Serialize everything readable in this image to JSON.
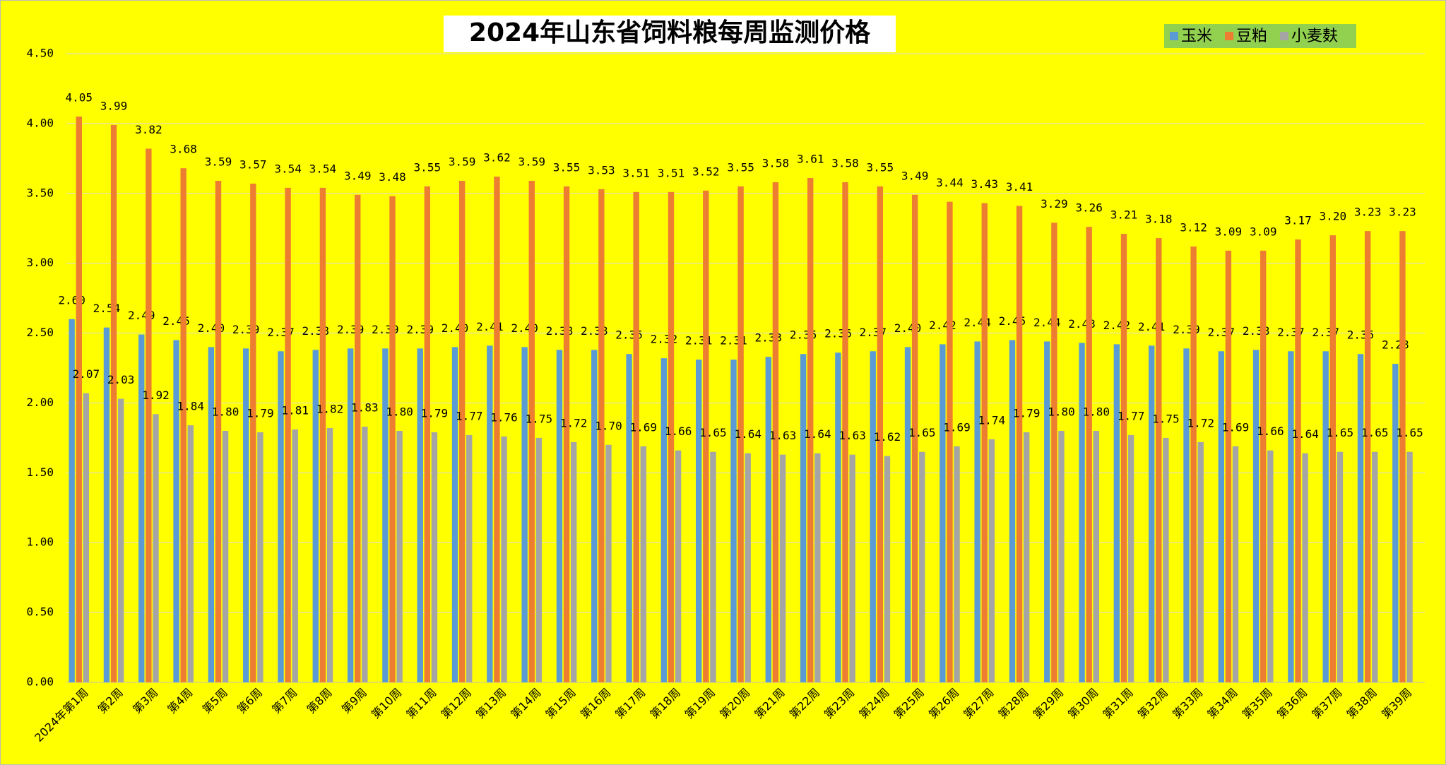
{
  "chart_data": {
    "type": "bar",
    "title": "2024年山东省饲料粮每周监测价格",
    "categories": [
      "2024年第1周",
      "第2周",
      "第3周",
      "第4周",
      "第5周",
      "第6周",
      "第7周",
      "第8周",
      "第9周",
      "第10周",
      "第11周",
      "第12周",
      "第13周",
      "第14周",
      "第15周",
      "第16周",
      "第17周",
      "第18周",
      "第19周",
      "第20周",
      "第21周",
      "第22周",
      "第23周",
      "第24周",
      "第25周",
      "第26周",
      "第27周",
      "第28周",
      "第29周",
      "第30周",
      "第31周",
      "第32周",
      "第33周",
      "第34周",
      "第35周",
      "第36周",
      "第37周",
      "第38周",
      "第39周"
    ],
    "series": [
      {
        "name": "玉米",
        "color": "#5b9bd5",
        "values": [
          2.6,
          2.54,
          2.49,
          2.45,
          2.4,
          2.39,
          2.37,
          2.38,
          2.39,
          2.39,
          2.39,
          2.4,
          2.41,
          2.4,
          2.38,
          2.38,
          2.35,
          2.32,
          2.31,
          2.31,
          2.33,
          2.35,
          2.36,
          2.37,
          2.4,
          2.42,
          2.44,
          2.45,
          2.44,
          2.43,
          2.42,
          2.41,
          2.39,
          2.37,
          2.38,
          2.37,
          2.37,
          2.35,
          2.28
        ],
        "value_labels": [
          "2.60",
          "2.54",
          "2.49",
          "2.45",
          "2.40",
          "2.39",
          "2.37",
          "2.38",
          "2.39",
          "2.39",
          "2.39",
          "2.40",
          "2.41",
          "2.40",
          "2.38",
          "2.38",
          "2.35",
          "2.32",
          "2.31",
          "2.31",
          "2.33",
          "2.35",
          "2.36",
          "2.37",
          "2.40",
          "2.42",
          "2.44",
          "2.45",
          "2.44",
          "2.43",
          "2.42",
          "2.41",
          "2.39",
          "2.37",
          "2.38",
          "2.37",
          "2.37",
          "2.35",
          "2.28"
        ]
      },
      {
        "name": "豆粕",
        "color": "#ed7d31",
        "values": [
          4.05,
          3.99,
          3.82,
          3.68,
          3.59,
          3.57,
          3.54,
          3.54,
          3.49,
          3.48,
          3.55,
          3.59,
          3.62,
          3.59,
          3.55,
          3.53,
          3.51,
          3.51,
          3.52,
          3.55,
          3.58,
          3.61,
          3.58,
          3.55,
          3.49,
          3.44,
          3.43,
          3.41,
          3.29,
          3.26,
          3.21,
          3.18,
          3.12,
          3.09,
          3.09,
          3.17,
          3.2,
          3.23,
          3.23
        ],
        "value_labels": [
          "4.05",
          "3.99",
          "3.82",
          "3.68",
          "3.59",
          "3.57",
          "3.54",
          "3.54",
          "3.49",
          "3.48",
          "3.55",
          "3.59",
          "3.62",
          "3.59",
          "3.55",
          "3.53",
          "3.51",
          "3.51",
          "3.52",
          "3.55",
          "3.58",
          "3.61",
          "3.58",
          "3.55",
          "3.49",
          "3.44",
          "3.43",
          "3.41",
          "3.29",
          "3.26",
          "3.21",
          "3.18",
          "3.12",
          "3.09",
          "3.09",
          "3.17",
          "3.20",
          "3.23",
          "3.23"
        ]
      },
      {
        "name": "小麦麸",
        "color": "#a5a5a5",
        "values": [
          2.07,
          2.03,
          1.92,
          1.84,
          1.8,
          1.79,
          1.81,
          1.82,
          1.83,
          1.8,
          1.79,
          1.77,
          1.76,
          1.75,
          1.72,
          1.7,
          1.69,
          1.66,
          1.65,
          1.64,
          1.63,
          1.64,
          1.63,
          1.62,
          1.65,
          1.69,
          1.74,
          1.79,
          1.8,
          1.8,
          1.77,
          1.75,
          1.72,
          1.69,
          1.66,
          1.64,
          1.65,
          1.65,
          1.65
        ],
        "value_labels": [
          "2.07",
          "2.03",
          "1.92",
          "1.84",
          "1.80",
          "1.79",
          "1.81",
          "1.82",
          "1.83",
          "1.80",
          "1.79",
          "1.77",
          "1.76",
          "1.75",
          "1.72",
          "1.70",
          "1.69",
          "1.66",
          "1.65",
          "1.64",
          "1.63",
          "1.64",
          "1.63",
          "1.62",
          "1.65",
          "1.69",
          "1.74",
          "1.79",
          "1.80",
          "1.80",
          "1.77",
          "1.75",
          "1.72",
          "1.69",
          "1.66",
          "1.64",
          "1.65",
          "1.65",
          "1.65"
        ]
      }
    ],
    "ylim": [
      0,
      4.5
    ],
    "yticks": [
      {
        "value": 0,
        "label": "0.00"
      },
      {
        "value": 0.5,
        "label": "0.50"
      },
      {
        "value": 1,
        "label": "1.00"
      },
      {
        "value": 1.5,
        "label": "1.50"
      },
      {
        "value": 2,
        "label": "2.00"
      },
      {
        "value": 2.5,
        "label": "2.50"
      },
      {
        "value": 3,
        "label": "3.00"
      },
      {
        "value": 3.5,
        "label": "3.50"
      },
      {
        "value": 4,
        "label": "4.00"
      },
      {
        "value": 4.5,
        "label": "4.50"
      }
    ],
    "grid": true,
    "legend": "top-right",
    "background": "#ffff00"
  }
}
